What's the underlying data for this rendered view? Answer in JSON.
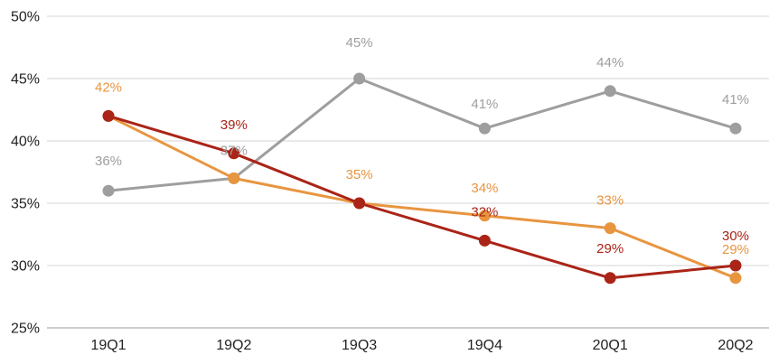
{
  "chart_data": {
    "type": "line",
    "title": "",
    "xlabel": "",
    "ylabel": "",
    "categories": [
      "19Q1",
      "19Q2",
      "19Q3",
      "19Q4",
      "20Q1",
      "20Q2"
    ],
    "ylim": [
      25,
      50
    ],
    "yticks": [
      25,
      30,
      35,
      40,
      45,
      50
    ],
    "ytick_labels": [
      "25%",
      "30%",
      "35%",
      "40%",
      "45%",
      "50%"
    ],
    "grid": true,
    "legend": "none",
    "series": [
      {
        "color": "#9e9e9e",
        "values": [
          36,
          37,
          45,
          41,
          44,
          41
        ],
        "labels": [
          "36%",
          "37%",
          "45%",
          "41%",
          "44%",
          "41%"
        ]
      },
      {
        "color": "#e8953f",
        "values": [
          42,
          37,
          35,
          34,
          33,
          29
        ],
        "labels": [
          "42%",
          "",
          "35%",
          "34%",
          "33%",
          "29%"
        ]
      },
      {
        "color": "#aa2417",
        "values": [
          42,
          39,
          35,
          32,
          29,
          30
        ],
        "labels": [
          "",
          "39%",
          "",
          "32%",
          "29%",
          "30%"
        ]
      }
    ]
  }
}
